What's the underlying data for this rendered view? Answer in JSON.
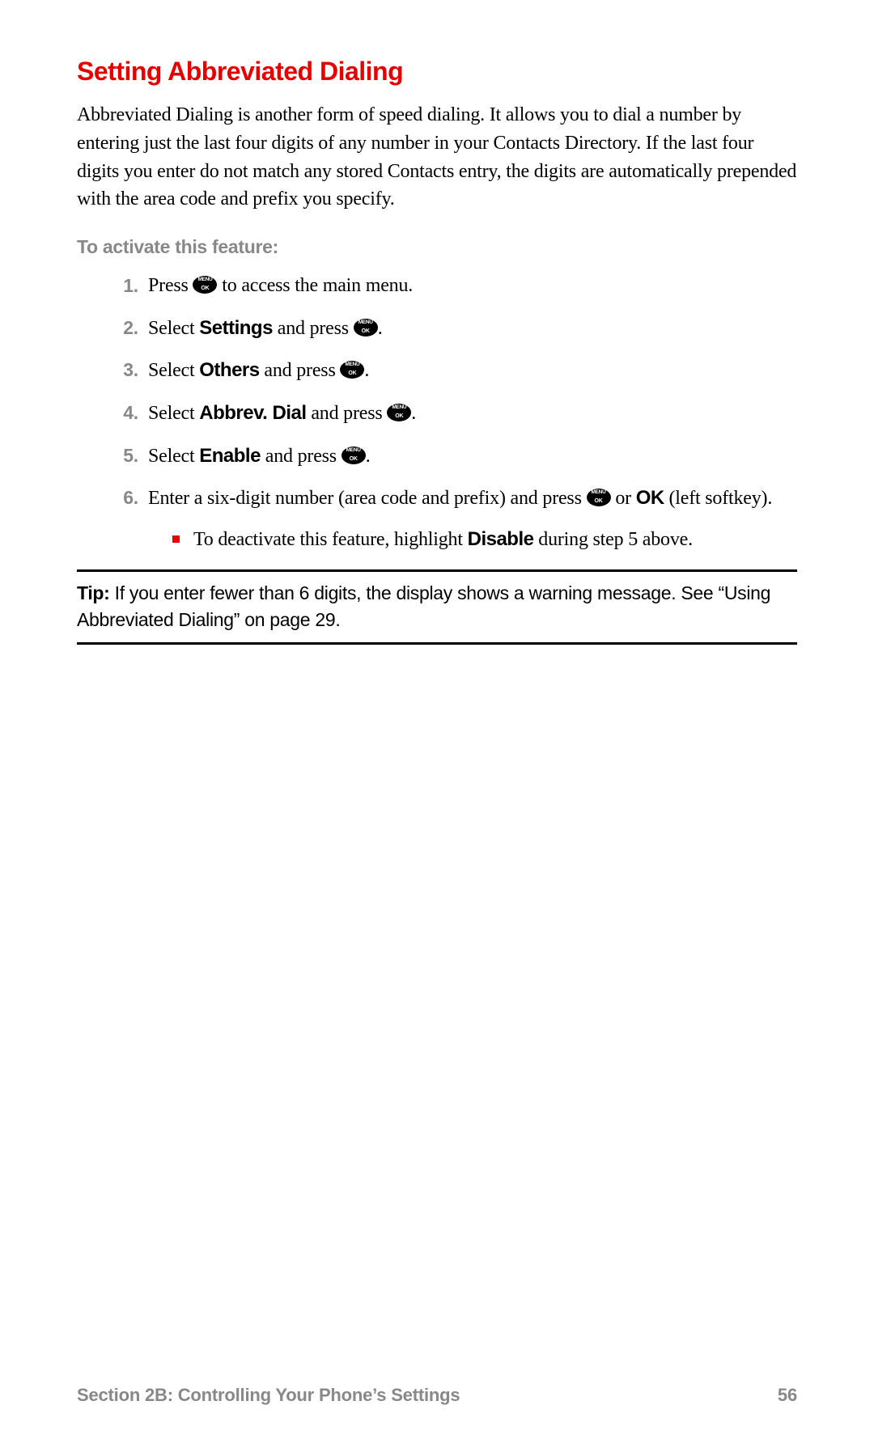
{
  "colors": {
    "accent": "#e60000",
    "text": "#000000",
    "muted": "#888888",
    "bg": "#ffffff"
  },
  "heading": "Setting Abbreviated Dialing",
  "intro": "Abbreviated Dialing is another form of speed dialing. It allows you to dial a number by entering just the last four digits of any number in your Contacts Directory. If the last four digits you enter do not match any stored Contacts entry, the digits are automatically prepended with the area code and prefix you specify.",
  "subhead": "To activate this feature:",
  "steps": {
    "s1_a": "Press ",
    "s1_b": " to access the main menu.",
    "s2_a": "Select ",
    "s2_bold": "Settings",
    "s2_b": " and press ",
    "s2_c": ".",
    "s3_a": "Select ",
    "s3_bold": "Others",
    "s3_b": " and press ",
    "s3_c": ".",
    "s4_a": "Select ",
    "s4_bold": "Abbrev. Dial",
    "s4_b": " and press ",
    "s4_c": ".",
    "s5_a": "Select ",
    "s5_bold": "Enable",
    "s5_b": " and press ",
    "s5_c": ".",
    "s6_a": "Enter a six-digit number (area code and prefix) and press ",
    "s6_b": " or ",
    "s6_bold": "OK",
    "s6_c": " (left softkey).",
    "sub_a": "To deactivate this feature, highlight ",
    "sub_bold": "Disable",
    "sub_b": " during step 5 above."
  },
  "tip": {
    "label": "Tip:",
    "text": " If you enter fewer than 6 digits, the display shows a warning message. See “Using Abbreviated Dialing” on page 29."
  },
  "footer": {
    "section": "Section 2B: Controlling Your Phone’s Settings",
    "page": "56"
  }
}
